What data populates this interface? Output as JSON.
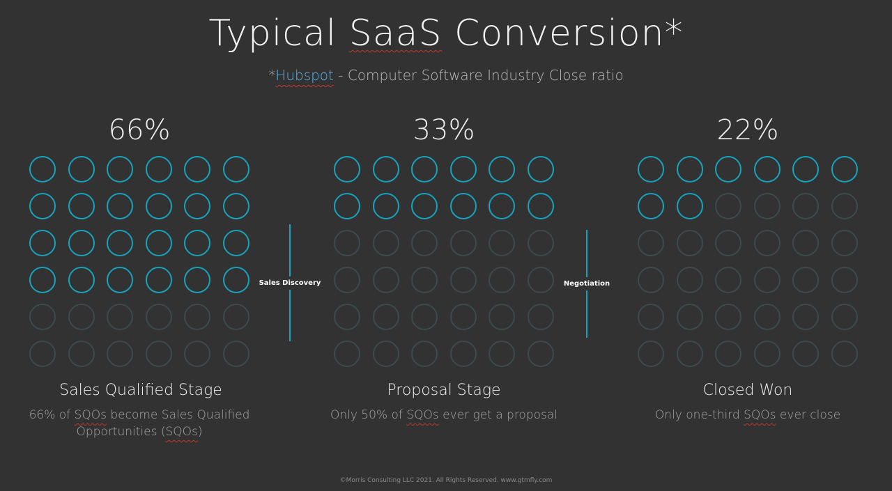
{
  "title": {
    "prefix": "Typical ",
    "underlined": "SaaS",
    "suffix": " Conversion*"
  },
  "subtitle": {
    "asterisk": "*",
    "link": "Hubspot",
    "rest": " - Computer Software Industry Close ratio"
  },
  "stages": [
    {
      "percent": "66%",
      "filled": 24,
      "total": 36,
      "name": "Sales Qualified Stage",
      "desc_parts": [
        "66% of ",
        "SQOs",
        " become Sales Qualified Opportunities (",
        "SQOs",
        ")"
      ]
    },
    {
      "percent": "33%",
      "filled": 12,
      "total": 36,
      "name": "Proposal Stage",
      "desc_parts": [
        "Only 50% of ",
        "SQOs",
        " ever get a proposal",
        "",
        ""
      ]
    },
    {
      "percent": "22%",
      "filled": 8,
      "total": 36,
      "name": "Closed Won",
      "desc_parts": [
        "Only one-third ",
        "SQOs",
        " ever close",
        "",
        ""
      ]
    }
  ],
  "separators": [
    "Sales Discovery",
    "Negotiation"
  ],
  "footer": "©Morris Consulting LLC 2021. All Rights Reserved. www.gtmfly.com",
  "colors": {
    "accent": "#17a3bd",
    "link": "#5ab4e8",
    "background": "#323232",
    "inactive": "#3d4a4e"
  }
}
